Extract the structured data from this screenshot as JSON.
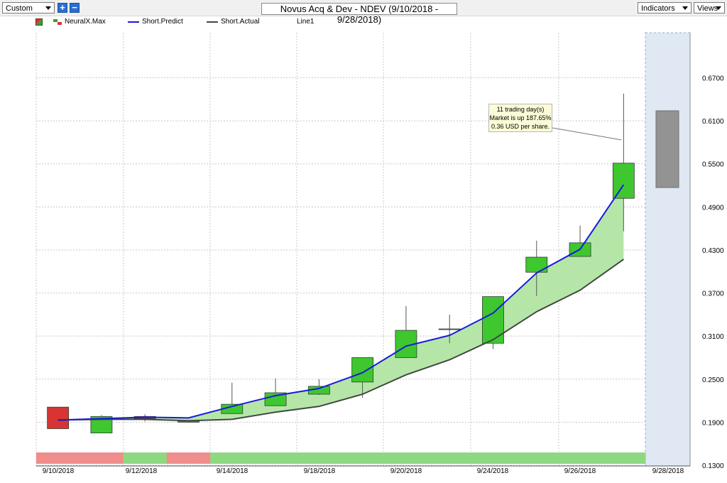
{
  "toolbar": {
    "period_select": "Custom",
    "add_label": "+",
    "remove_label": "−",
    "title": "Novus Acq & Dev - NDEV (9/10/2018 - 9/28/2018)",
    "indicators_label": "Indicators",
    "views_label": "Views"
  },
  "legend": {
    "neuralx": "NeuralX.Max",
    "short_predict": "Short.Predict",
    "short_actual": "Short.Actual",
    "line1": "Line1"
  },
  "callout": {
    "line1": "11 trading day(s)",
    "line2": "Market is up 187.65%",
    "line3": "0.36 USD per share."
  },
  "colors": {
    "up": "#3fc72f",
    "down": "#d83434",
    "predict": "#1a1adc",
    "actual": "#404840",
    "band_fill": "#b5e6a8",
    "forecast_region": "#dfe8f3",
    "forecast_candle": "#939393",
    "strip_pink": "#f08d8d",
    "strip_green": "#8ed881"
  },
  "chart_data": {
    "type": "candlestick",
    "y_ticks": [
      "0.6700",
      "0.6100",
      "0.5500",
      "0.4900",
      "0.4300",
      "0.3700",
      "0.3100",
      "0.2500",
      "0.1900",
      "0.1300"
    ],
    "ylim": [
      0.13,
      0.67
    ],
    "x_tick_labels": [
      "9/10/2018",
      "9/12/2018",
      "9/14/2018",
      "9/18/2018",
      "9/20/2018",
      "9/24/2018",
      "9/26/2018",
      "9/28/2018"
    ],
    "candles": [
      {
        "date": "9/10/2018",
        "open": 0.211,
        "high": 0.211,
        "low": 0.181,
        "close": 0.181
      },
      {
        "date": "9/11/2018",
        "open": 0.175,
        "high": 0.2,
        "low": 0.175,
        "close": 0.198
      },
      {
        "date": "9/12/2018",
        "open": 0.198,
        "high": 0.201,
        "low": 0.191,
        "close": 0.195
      },
      {
        "date": "9/13/2018",
        "open": 0.192,
        "high": 0.192,
        "low": 0.191,
        "close": 0.19
      },
      {
        "date": "9/14/2018",
        "open": 0.202,
        "high": 0.245,
        "low": 0.202,
        "close": 0.215
      },
      {
        "date": "9/17/2018",
        "open": 0.213,
        "high": 0.251,
        "low": 0.213,
        "close": 0.231
      },
      {
        "date": "9/18/2018",
        "open": 0.229,
        "high": 0.25,
        "low": 0.228,
        "close": 0.24
      },
      {
        "date": "9/19/2018",
        "open": 0.246,
        "high": 0.28,
        "low": 0.224,
        "close": 0.28
      },
      {
        "date": "9/20/2018",
        "open": 0.28,
        "high": 0.352,
        "low": 0.28,
        "close": 0.318
      },
      {
        "date": "9/21/2018",
        "open": 0.32,
        "high": 0.34,
        "low": 0.3,
        "close": 0.32
      },
      {
        "date": "9/24/2018",
        "open": 0.3,
        "high": 0.365,
        "low": 0.292,
        "close": 0.365
      },
      {
        "date": "9/25/2018",
        "open": 0.399,
        "high": 0.443,
        "low": 0.366,
        "close": 0.42
      },
      {
        "date": "9/26/2018",
        "open": 0.421,
        "high": 0.464,
        "low": 0.421,
        "close": 0.44
      },
      {
        "date": "9/27/2018",
        "open": 0.502,
        "high": 0.648,
        "low": 0.456,
        "close": 0.551
      }
    ],
    "series": [
      {
        "name": "Short.Predict",
        "values": [
          0.193,
          0.195,
          0.197,
          0.196,
          0.212,
          0.227,
          0.237,
          0.259,
          0.296,
          0.311,
          0.342,
          0.398,
          0.431,
          0.521
        ]
      },
      {
        "name": "Short.Actual",
        "values": [
          0.193,
          0.194,
          0.194,
          0.192,
          0.194,
          0.204,
          0.212,
          0.229,
          0.256,
          0.277,
          0.305,
          0.344,
          0.374,
          0.417
        ]
      }
    ],
    "forecast": {
      "date": "9/28/2018",
      "open": 0.624,
      "close": 0.517
    },
    "neuralx_strip": [
      "pink",
      "pink",
      "green",
      "pink",
      "green",
      "green",
      "green",
      "green",
      "green",
      "green",
      "green",
      "green",
      "green",
      "green"
    ]
  }
}
